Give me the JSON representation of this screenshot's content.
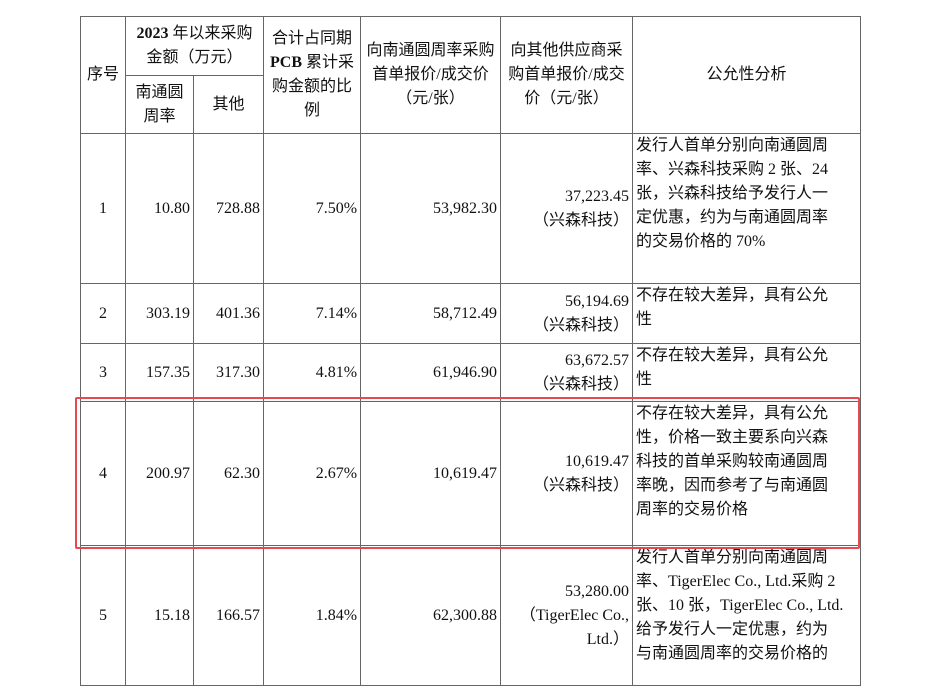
{
  "header": {
    "seq": "序号",
    "amount_group_bold": "2023",
    "amount_group": "年以来采购金额（万元）",
    "sub_ntyz": "南通圆周率",
    "sub_other": "其他",
    "ratio_pre": "合计占同期",
    "ratio_bold": "PCB",
    "ratio_post": "累计采购金额的比例",
    "price_ntyz": "向南通圆周率采购首单报价/成交价（元/张）",
    "price_other": "向其他供应商采购首单报价/成交价（元/张）",
    "analysis": "公允性分析"
  },
  "rows": [
    {
      "seq": "1",
      "ntyz": "10.80",
      "other": "728.88",
      "ratio": "7.50%",
      "price_ntyz": "53,982.30",
      "price_other": "37,223.45",
      "supplier": "（兴森科技）",
      "analysis": [
        "发行人首单分别向南通圆周",
        "率、兴森科技采购 2 张、24",
        "张，兴森科技给予发行人一",
        "定优惠，约为与南通圆周率",
        "的交易价格的 70%"
      ]
    },
    {
      "seq": "2",
      "ntyz": "303.19",
      "other": "401.36",
      "ratio": "7.14%",
      "price_ntyz": "58,712.49",
      "price_other": "56,194.69",
      "supplier": "（兴森科技）",
      "analysis": [
        "不存在较大差异，具有公允",
        "性"
      ]
    },
    {
      "seq": "3",
      "ntyz": "157.35",
      "other": "317.30",
      "ratio": "4.81%",
      "price_ntyz": "61,946.90",
      "price_other": "63,672.57",
      "supplier": "（兴森科技）",
      "analysis": [
        "不存在较大差异，具有公允",
        "性"
      ]
    },
    {
      "seq": "4",
      "ntyz": "200.97",
      "other": "62.30",
      "ratio": "2.67%",
      "price_ntyz": "10,619.47",
      "price_other": "10,619.47",
      "supplier": "（兴森科技）",
      "analysis": [
        "不存在较大差异，具有公允",
        "性，价格一致主要系向兴森",
        "科技的首单采购较南通圆周",
        "率晚，因而参考了与南通圆",
        "周率的交易价格"
      ]
    },
    {
      "seq": "5",
      "ntyz": "15.18",
      "other": "166.57",
      "ratio": "1.84%",
      "price_ntyz": "62,300.88",
      "price_other": "53,280.00",
      "supplier": "（TigerElec Co., Ltd.）",
      "analysis": [
        "发行人首单分别向南通圆周",
        "率、TigerElec Co., Ltd.采购 2",
        "张、10 张，TigerElec Co., Ltd.",
        "给予发行人一定优惠，约为",
        "与南通圆周率的交易价格的"
      ]
    }
  ],
  "highlight_color": "#e8484f"
}
